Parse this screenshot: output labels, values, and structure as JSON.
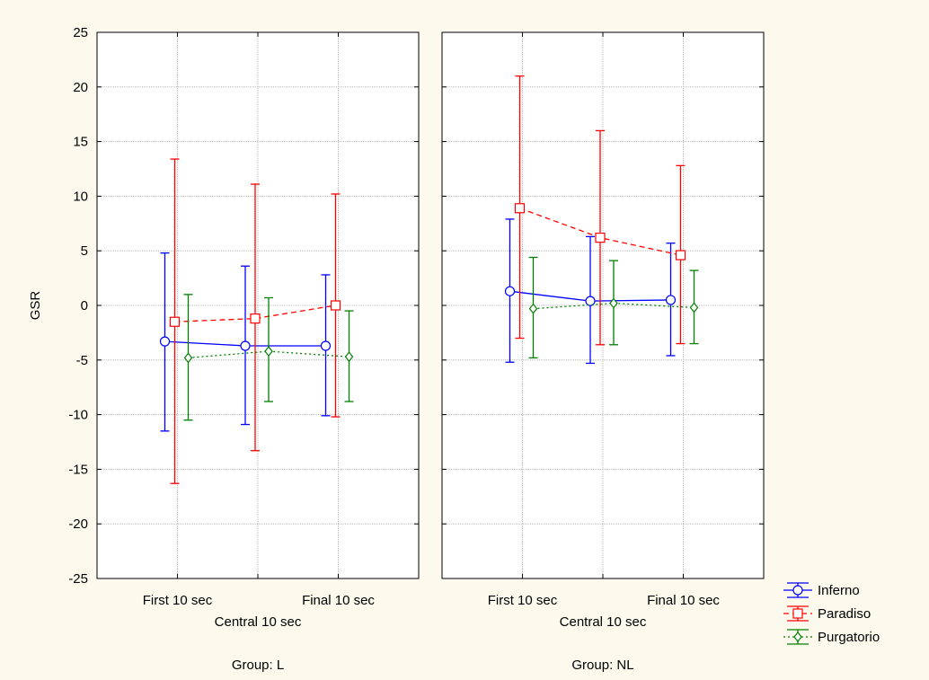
{
  "chart_data": {
    "type": "line",
    "ylabel": "GSR",
    "ylim": [
      -25,
      25
    ],
    "yticks": [
      25,
      20,
      15,
      10,
      5,
      0,
      -5,
      -10,
      -15,
      -20,
      -25
    ],
    "grid": true,
    "categories": [
      "First 10 sec",
      "Central 10 sec",
      "Final 10 sec"
    ],
    "legend_position": "bottom-right",
    "colors": {
      "Inferno": "#0000ff",
      "Paradiso": "#ff0000",
      "Purgatorio": "#008000",
      "background": "#fdf9ec"
    },
    "panels": [
      {
        "label": "Group: L",
        "series": [
          {
            "name": "Inferno",
            "means": [
              -3.3,
              -3.7,
              -3.7
            ],
            "upper": [
              4.8,
              3.6,
              2.8
            ],
            "lower": [
              -11.5,
              -10.9,
              -10.1
            ]
          },
          {
            "name": "Paradiso",
            "means": [
              -1.5,
              -1.2,
              0.0
            ],
            "upper": [
              13.4,
              11.1,
              10.2
            ],
            "lower": [
              -16.3,
              -13.3,
              -10.2
            ]
          },
          {
            "name": "Purgatorio",
            "means": [
              -4.8,
              -4.2,
              -4.7
            ],
            "upper": [
              1.0,
              0.7,
              -0.5
            ],
            "lower": [
              -10.5,
              -8.8,
              -8.8
            ]
          }
        ]
      },
      {
        "label": "Group: NL",
        "series": [
          {
            "name": "Inferno",
            "means": [
              1.3,
              0.4,
              0.5
            ],
            "upper": [
              7.9,
              6.3,
              5.7
            ],
            "lower": [
              -5.2,
              -5.3,
              -4.6
            ]
          },
          {
            "name": "Paradiso",
            "means": [
              8.9,
              6.2,
              4.6
            ],
            "upper": [
              21.0,
              16.0,
              12.8
            ],
            "lower": [
              -3.0,
              -3.6,
              -3.5
            ]
          },
          {
            "name": "Purgatorio",
            "means": [
              -0.3,
              0.2,
              -0.2
            ],
            "upper": [
              4.4,
              4.1,
              3.2
            ],
            "lower": [
              -4.8,
              -3.6,
              -3.5
            ]
          }
        ]
      }
    ]
  }
}
